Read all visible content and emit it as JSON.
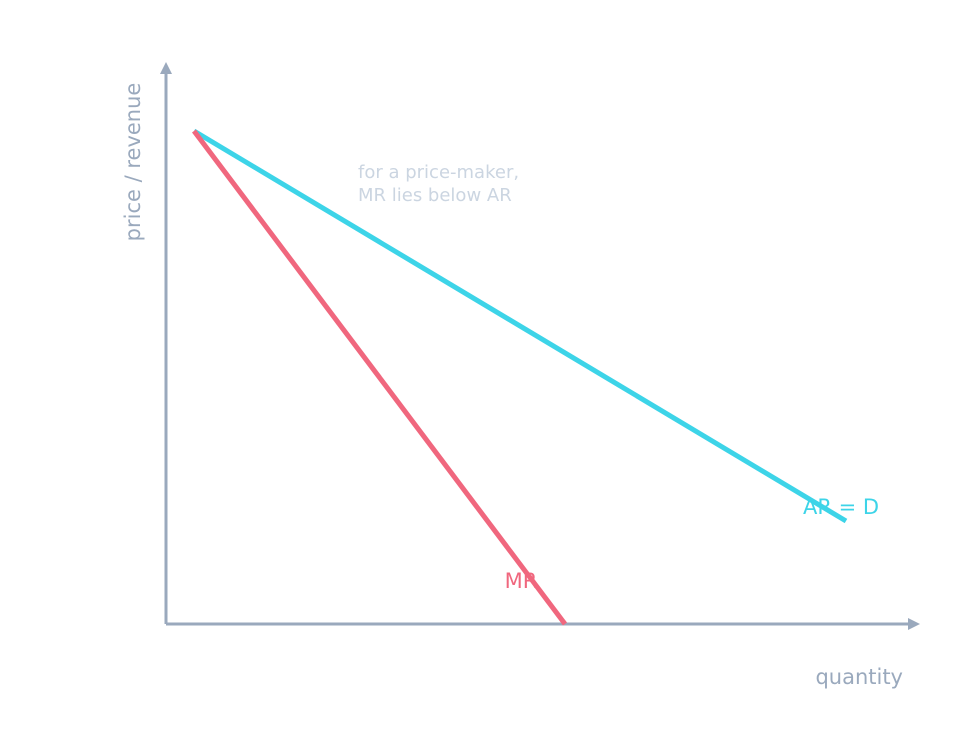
{
  "diagram": {
    "y_axis_label": "price / revenue",
    "x_axis_label": "quantity",
    "annotation": [
      "for a price-maker,",
      "MR lies below AR"
    ],
    "curves": [
      {
        "label": "AR = D",
        "color": "#3dd4e8"
      },
      {
        "label": "MR",
        "color": "#f0677e"
      }
    ]
  }
}
